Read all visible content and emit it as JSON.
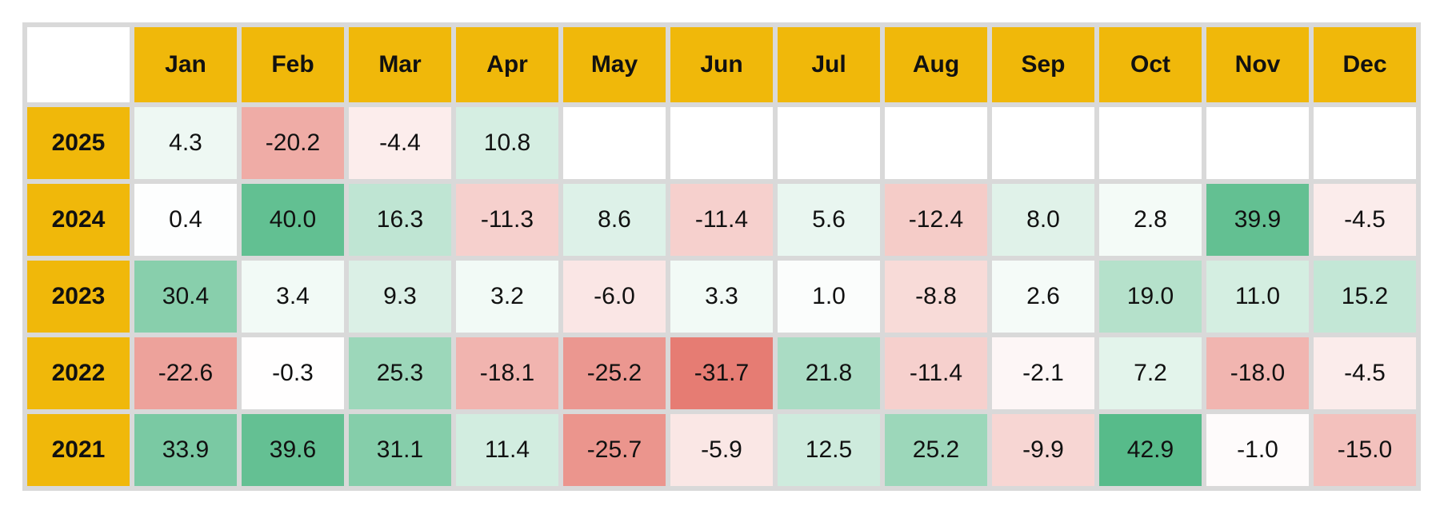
{
  "colors": {
    "header_bg": "#f0b80a",
    "positive_max": "#57bb8a",
    "negative_max": "#e67c73",
    "neutral": "#ffffff",
    "grid": "#d9d9d9"
  },
  "chart_data": {
    "type": "heatmap",
    "title": "",
    "x_categories": [
      "Jan",
      "Feb",
      "Mar",
      "Apr",
      "May",
      "Jun",
      "Jul",
      "Aug",
      "Sep",
      "Oct",
      "Nov",
      "Dec"
    ],
    "y_categories": [
      "2025",
      "2024",
      "2023",
      "2022",
      "2021"
    ],
    "values": [
      [
        4.3,
        -20.2,
        -4.4,
        10.8,
        null,
        null,
        null,
        null,
        null,
        null,
        null,
        null
      ],
      [
        0.4,
        40.0,
        16.3,
        -11.3,
        8.6,
        -11.4,
        5.6,
        -12.4,
        8.0,
        2.8,
        39.9,
        -4.5
      ],
      [
        30.4,
        3.4,
        9.3,
        3.2,
        -6.0,
        3.3,
        1.0,
        -8.8,
        2.6,
        19.0,
        11.0,
        15.2
      ],
      [
        -22.6,
        -0.3,
        25.3,
        -18.1,
        -25.2,
        -31.7,
        21.8,
        -11.4,
        -2.1,
        7.2,
        -18.0,
        -4.5
      ],
      [
        33.9,
        39.6,
        31.1,
        11.4,
        -25.7,
        -5.9,
        12.5,
        25.2,
        -9.9,
        42.9,
        -1.0,
        -15.0
      ]
    ],
    "color_scale": {
      "min": -31.7,
      "mid": 0,
      "max": 42.9
    },
    "value_format": "one_decimal"
  }
}
